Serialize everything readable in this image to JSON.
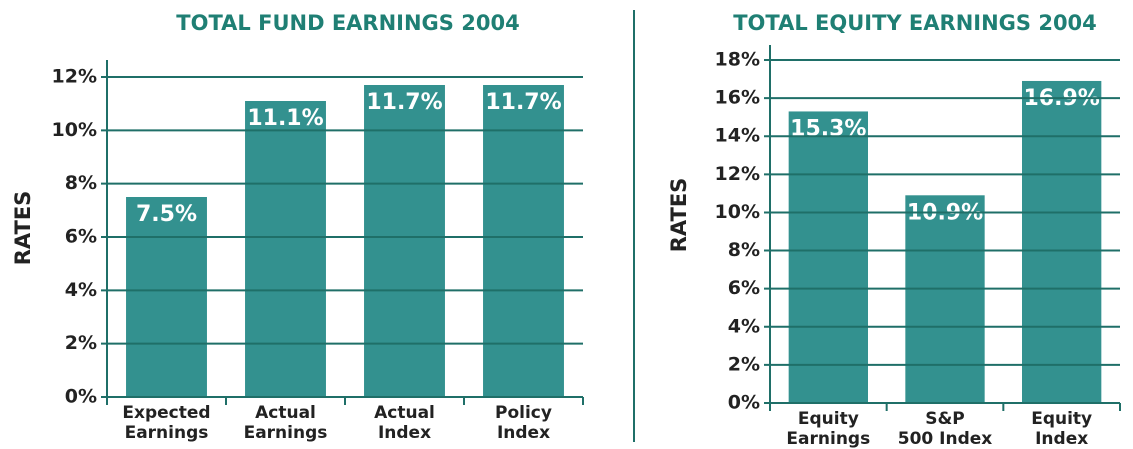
{
  "chart_data": [
    {
      "type": "bar",
      "title": "TOTAL FUND EARNINGS 2004",
      "y_label": "RATES",
      "categories": [
        [
          "Expected",
          "Earnings"
        ],
        [
          "Actual",
          "Earnings"
        ],
        [
          "Actual",
          "Index"
        ],
        [
          "Policy",
          "Index"
        ]
      ],
      "values": [
        7.5,
        11.1,
        11.7,
        11.7
      ],
      "value_labels": [
        "7.5%",
        "11.1%",
        "11.7%",
        "11.7%"
      ],
      "color": "#33918f",
      "ylim": [
        0,
        12
      ],
      "yticks": [
        {
          "value": 0,
          "label": "0%"
        },
        {
          "value": 2,
          "label": "2%"
        },
        {
          "value": 4,
          "label": "4%"
        },
        {
          "value": 6,
          "label": "6%"
        },
        {
          "value": 8,
          "label": "8%"
        },
        {
          "value": 10,
          "label": "10%"
        },
        {
          "value": 12,
          "label": "12%"
        }
      ],
      "grid": true
    },
    {
      "type": "bar",
      "title": "TOTAL EQUITY EARNINGS 2004",
      "y_label": "RATES",
      "categories": [
        [
          "Equity",
          "Earnings"
        ],
        [
          "S&P",
          "500 Index"
        ],
        [
          "Equity",
          "Index"
        ]
      ],
      "values": [
        15.3,
        10.9,
        16.9
      ],
      "value_labels": [
        "15.3%",
        "10.9%",
        "16.9%"
      ],
      "color": "#33918f",
      "ylim": [
        0,
        18
      ],
      "yticks": [
        {
          "value": 0,
          "label": "0%"
        },
        {
          "value": 2,
          "label": "2%"
        },
        {
          "value": 4,
          "label": "4%"
        },
        {
          "value": 6,
          "label": "6%"
        },
        {
          "value": 8,
          "label": "8%"
        },
        {
          "value": 10,
          "label": "10%"
        },
        {
          "value": 12,
          "label": "12%"
        },
        {
          "value": 14,
          "label": "14%"
        },
        {
          "value": 16,
          "label": "16%"
        },
        {
          "value": 18,
          "label": "18%"
        }
      ],
      "grid": true
    }
  ]
}
